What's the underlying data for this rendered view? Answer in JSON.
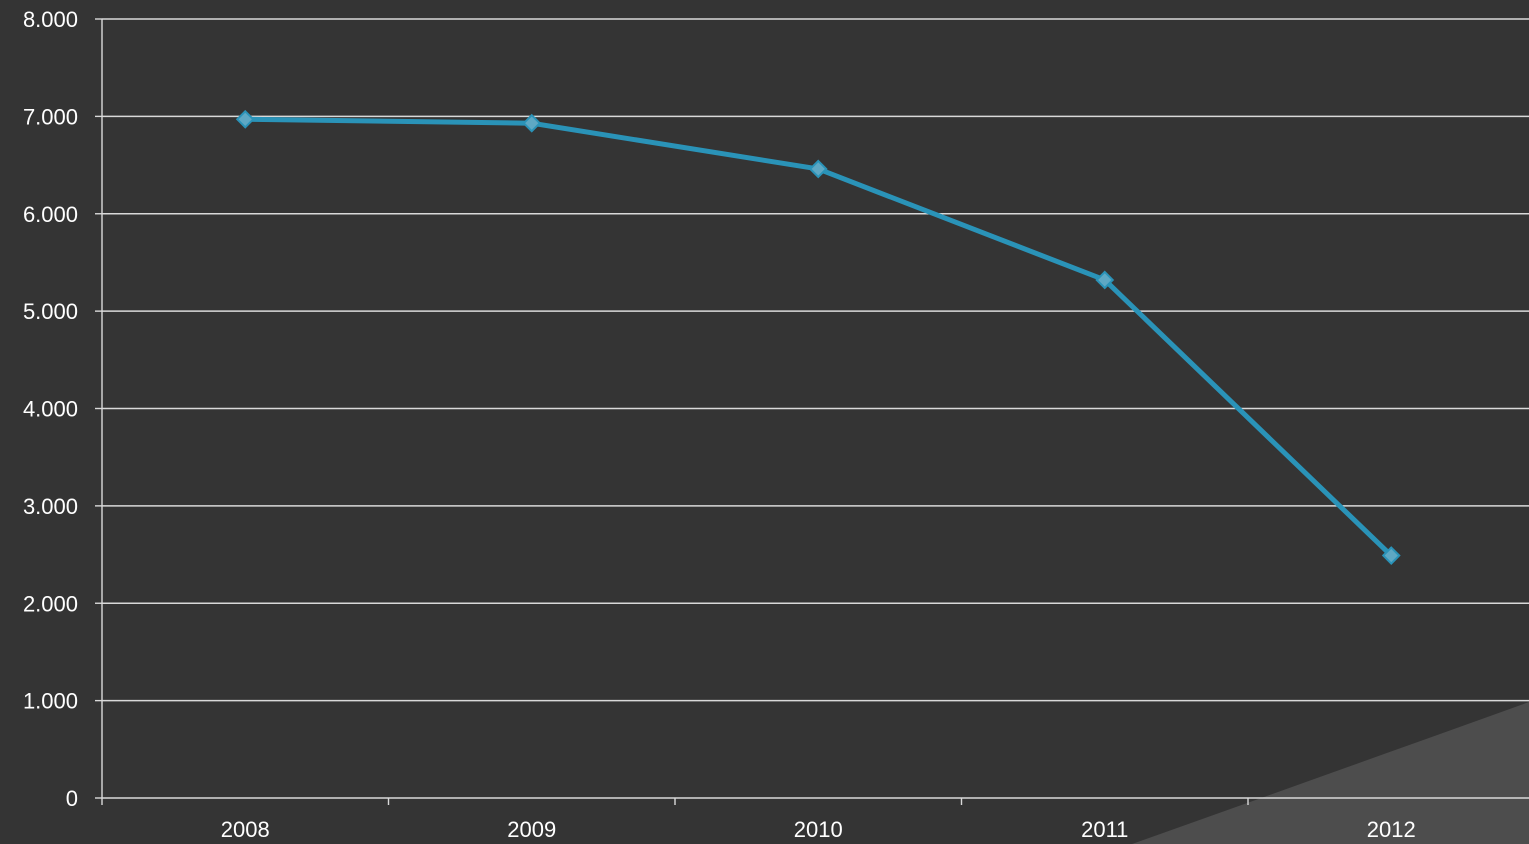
{
  "chart_data": {
    "type": "line",
    "categories": [
      "2008",
      "2009",
      "2010",
      "2011",
      "2012"
    ],
    "series": [
      {
        "values": [
          6970,
          6930,
          6460,
          5320,
          2490
        ]
      }
    ],
    "y_ticks": [
      "0",
      "1.000",
      "2.000",
      "3.000",
      "4.000",
      "5.000",
      "6.000",
      "7.000",
      "8.000"
    ],
    "ylim": [
      0,
      8000
    ],
    "y_tick_step": 1000,
    "grid": true,
    "legend": "none",
    "marker": "diamond"
  },
  "colors": {
    "background": "#343434",
    "line": "#2a93b8",
    "marker_fill": "#5ea8c4",
    "marker_stroke": "#2a93b8",
    "gridline": "#d9d9d9",
    "axis": "#d9d9d9",
    "text": "#ffffff",
    "corner_shape": "#4d4d4d"
  }
}
